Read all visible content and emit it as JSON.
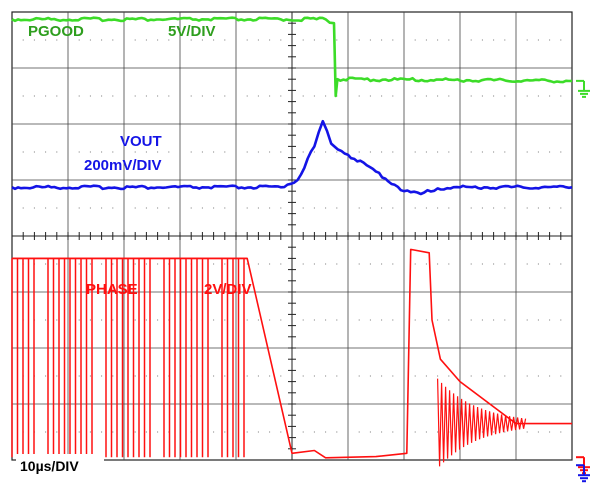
{
  "labels": {
    "pgood": "PGOOD",
    "pgood_scale": "5V/DIV",
    "vout": "VOUT",
    "vout_scale": "200mV/DIV",
    "phase": "PHASE",
    "phase_scale": "2V/DIV",
    "timebase": "10µs/DIV"
  },
  "colors": {
    "pgood": "#3cdc28",
    "pgood_text": "#2e9e1e",
    "vout": "#1414e6",
    "phase": "#ff1010",
    "grid": "#444444",
    "frame": "#222222"
  },
  "chart_data": {
    "type": "line",
    "title": "",
    "grid": true,
    "divisions": {
      "x": 10,
      "y": 8
    },
    "x_unit": "div (10µs/DIV)",
    "xlim": [
      0,
      10
    ],
    "ylim": [
      0,
      8
    ],
    "series": [
      {
        "name": "PGOOD",
        "x": [
          0,
          5.6,
          5.75,
          5.78,
          5.81,
          10
        ],
        "y": [
          7.87,
          7.87,
          7.8,
          6.5,
          6.8,
          6.77
        ]
      },
      {
        "name": "VOUT",
        "x": [
          0,
          4.8,
          5.1,
          5.4,
          5.55,
          5.7,
          6.0,
          6.5,
          7.0,
          7.3,
          7.6,
          8.0,
          10
        ],
        "y": [
          4.87,
          4.87,
          5.0,
          5.6,
          6.05,
          5.65,
          5.45,
          5.15,
          4.8,
          4.75,
          4.85,
          4.87,
          4.87
        ]
      },
      {
        "name": "PHASE",
        "x": [
          0,
          0.65,
          1.15,
          1.6,
          2.0,
          2.9,
          3.3,
          3.6,
          4.2,
          5.0,
          5.4,
          5.6,
          6.5,
          7.05,
          7.12,
          7.45,
          7.5,
          7.65,
          8.0,
          9.0,
          10
        ],
        "y": [
          3.6,
          3.6,
          3.6,
          3.6,
          3.6,
          3.6,
          3.6,
          3.6,
          3.6,
          0.12,
          0.17,
          0.04,
          0.06,
          0.12,
          3.76,
          3.7,
          2.5,
          1.8,
          1.4,
          0.65,
          0.65
        ]
      }
    ]
  }
}
